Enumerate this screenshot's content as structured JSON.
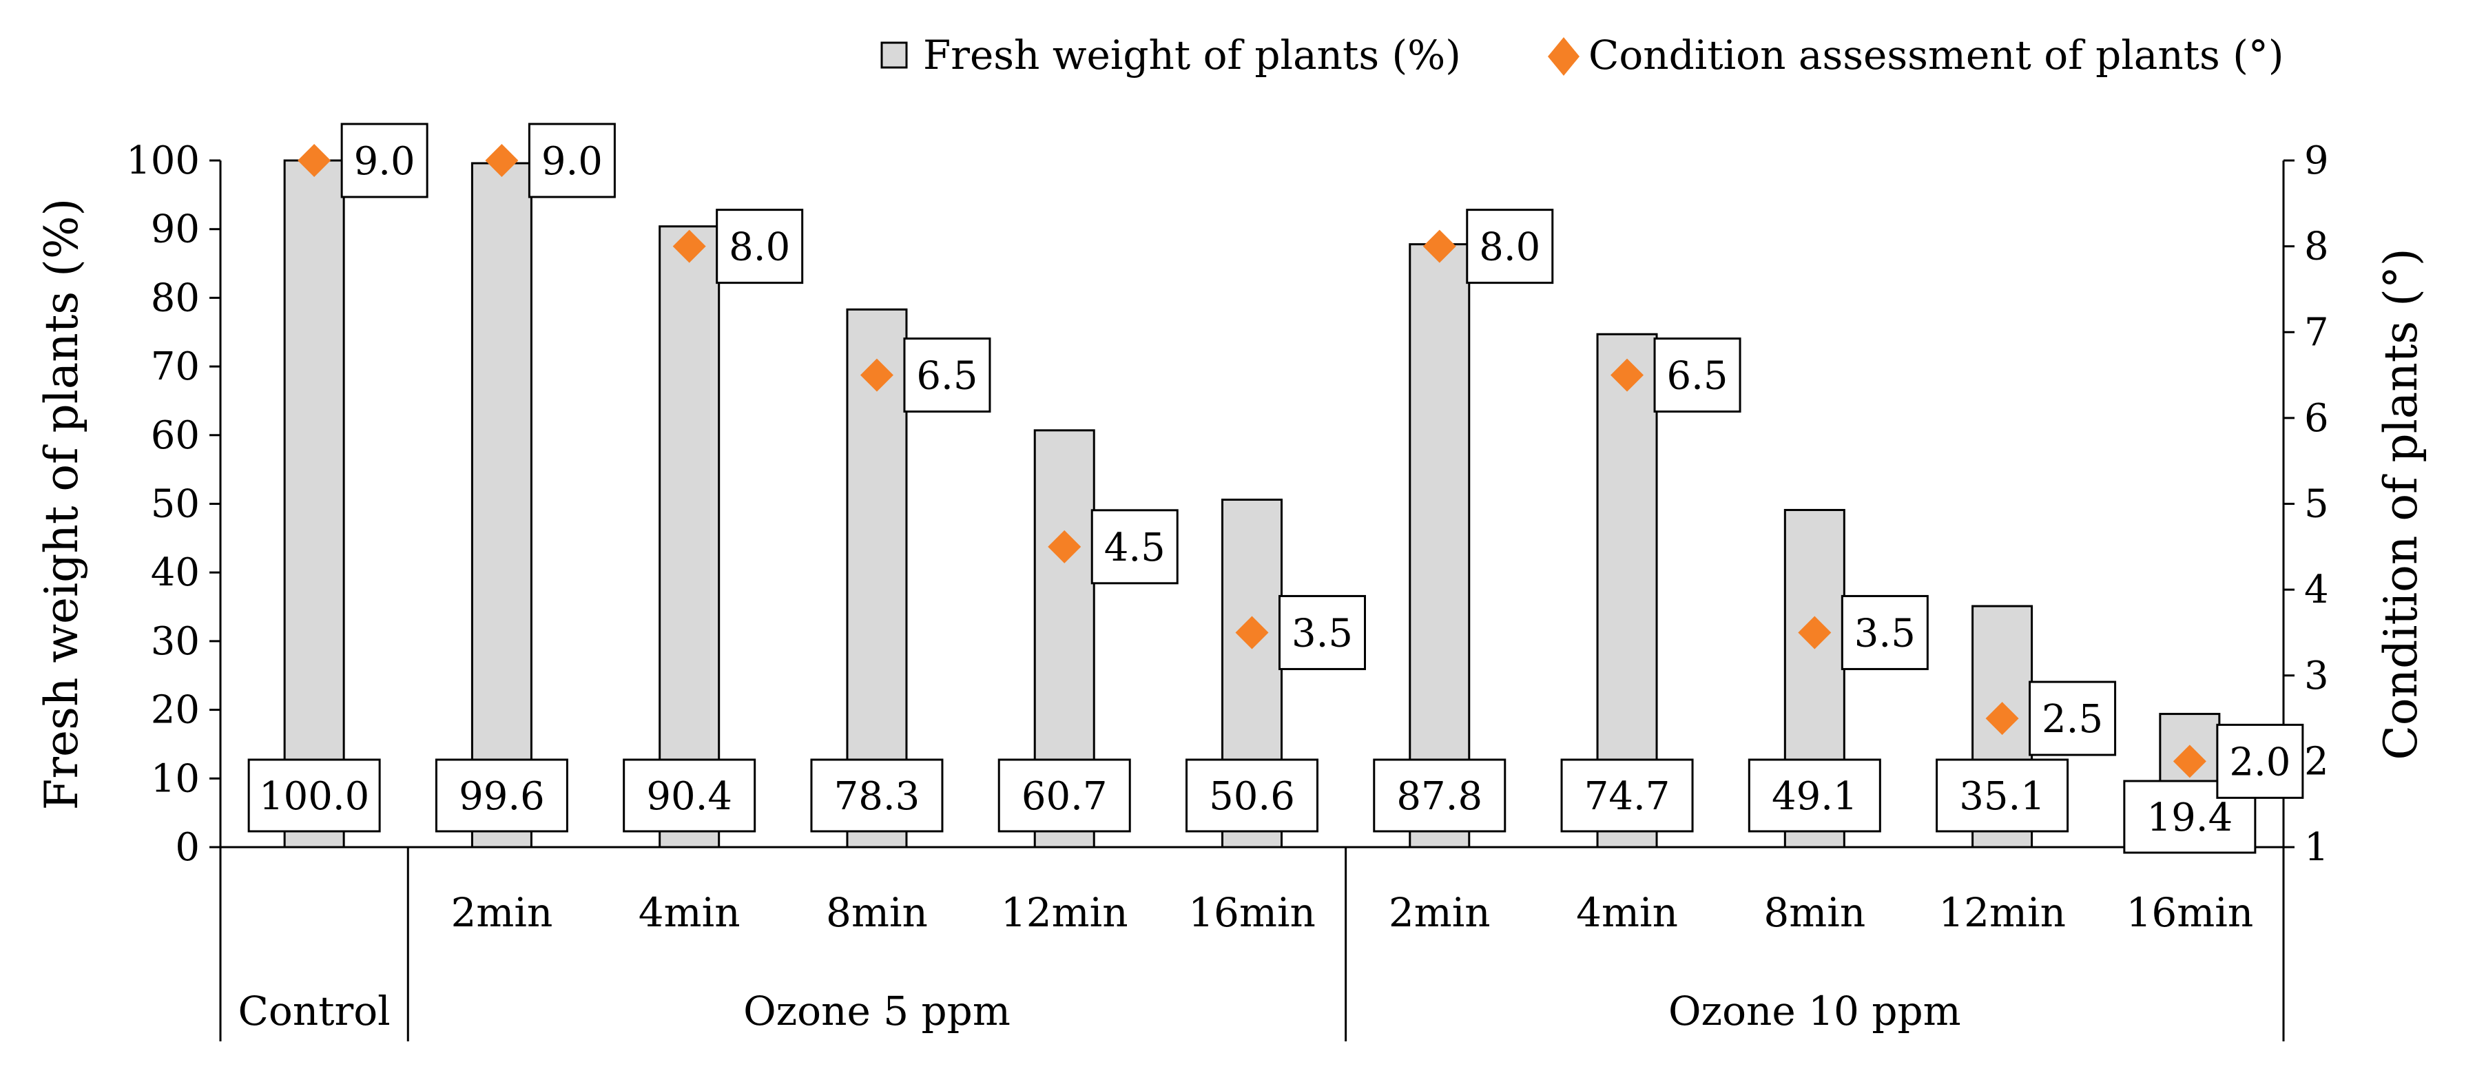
{
  "chart_data": {
    "type": "bar+scatter",
    "legend": {
      "bar_label": "Fresh weight of plants (%)",
      "marker_label": "Condition assessment of plants (°)",
      "placement": "top-right"
    },
    "y_left": {
      "label": "Fresh weight of plants (%)",
      "range": [
        0,
        100
      ],
      "ticks": [
        "0",
        "10",
        "20",
        "30",
        "40",
        "50",
        "60",
        "70",
        "80",
        "90",
        "100"
      ]
    },
    "y_right": {
      "label": "Condition of plants (°)",
      "range": [
        1,
        9
      ],
      "ticks": [
        "1",
        "2",
        "3",
        "4",
        "5",
        "6",
        "7",
        "8",
        "9"
      ]
    },
    "categories": [
      "",
      "2min",
      "4min",
      "8min",
      "12min",
      "16min",
      "2min",
      "4min",
      "8min",
      "12min",
      "16min"
    ],
    "groups": [
      {
        "label": "Control",
        "count": 1
      },
      {
        "label": "Ozone 5 ppm",
        "count": 5
      },
      {
        "label": "Ozone 10 ppm",
        "count": 5
      }
    ],
    "series": [
      {
        "name": "Fresh weight of plants (%)",
        "type": "bar",
        "axis": "left",
        "values": [
          100.0,
          99.6,
          90.4,
          78.3,
          60.7,
          50.6,
          87.8,
          74.7,
          49.1,
          35.1,
          19.4
        ],
        "labels": [
          "100.0",
          "99.6",
          "90.4",
          "78.3",
          "60.7",
          "50.6",
          "87.8",
          "74.7",
          "49.1",
          "35.1",
          "19.4"
        ]
      },
      {
        "name": "Condition assessment of plants (°)",
        "type": "scatter",
        "axis": "right",
        "values": [
          9.0,
          9.0,
          8.0,
          6.5,
          4.5,
          3.5,
          8.0,
          6.5,
          3.5,
          2.5,
          2.0
        ],
        "labels": [
          "9.0",
          "9.0",
          "8.0",
          "6.5",
          "4.5",
          "3.5",
          "8.0",
          "6.5",
          "3.5",
          "2.5",
          "2.0"
        ]
      }
    ],
    "colors": {
      "bar_fill": "#d9d9d9",
      "bar_stroke": "#000000",
      "marker": "#f58025"
    }
  }
}
